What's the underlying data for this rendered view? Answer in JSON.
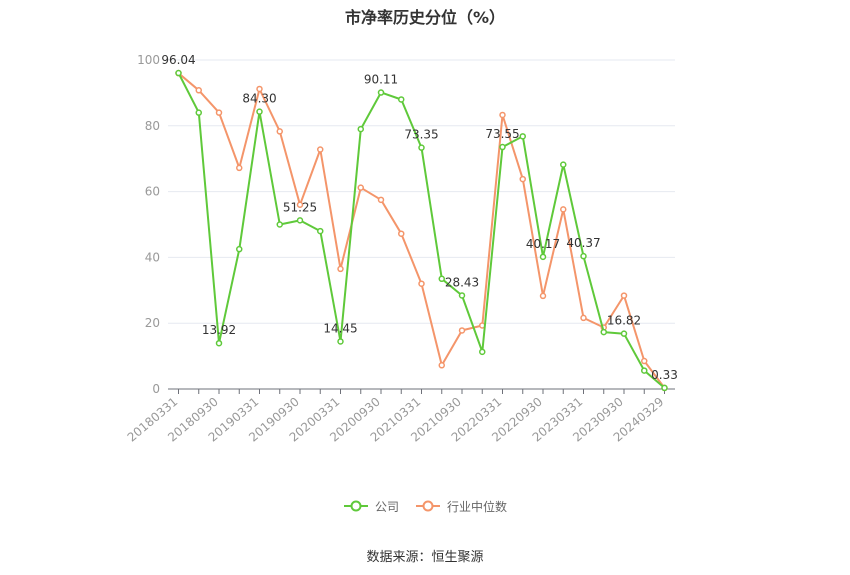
{
  "title": "市净率历史分位（%）",
  "source": "数据来源：恒生聚源",
  "chart_data": {
    "type": "line",
    "title": "市净率历史分位（%）",
    "ylim": [
      0,
      100
    ],
    "yticks": [
      0,
      20,
      40,
      60,
      80,
      100
    ],
    "grid": "horizontal",
    "legend_position": "bottom",
    "x_tick_labels": [
      "20180331",
      "20180930",
      "20190331",
      "20190930",
      "20200331",
      "20200930",
      "20210331",
      "20210930",
      "20220331",
      "20220930",
      "20230331",
      "20230930",
      "20240329"
    ],
    "x": [
      "20180331",
      "20180630",
      "20180930",
      "20181231",
      "20190331",
      "20190630",
      "20190930",
      "20191231",
      "20200331",
      "20200630",
      "20200930",
      "20201231",
      "20210331",
      "20210630",
      "20210930",
      "20211231",
      "20220331",
      "20220630",
      "20220930",
      "20221231",
      "20230331",
      "20230630",
      "20230930",
      "20231231",
      "20240329"
    ],
    "series": [
      {
        "name": "公司",
        "color": "#5fc93a",
        "values": [
          96.04,
          84.0,
          13.92,
          42.5,
          84.3,
          50.0,
          51.25,
          48.0,
          14.45,
          79.0,
          90.11,
          88.0,
          73.35,
          33.5,
          28.43,
          11.3,
          73.55,
          76.8,
          40.17,
          68.2,
          40.37,
          17.3,
          16.82,
          5.6,
          0.33
        ]
      },
      {
        "name": "行业中位数",
        "color": "#f4956a",
        "values": [
          96.0,
          90.8,
          84.0,
          67.2,
          91.2,
          78.3,
          56.0,
          72.8,
          36.5,
          61.2,
          57.5,
          47.2,
          32.0,
          7.2,
          17.8,
          19.3,
          83.3,
          63.8,
          28.3,
          54.6,
          21.6,
          18.7,
          28.4,
          8.5,
          0.33
        ]
      }
    ],
    "data_labels": [
      {
        "index": 0,
        "text": "96.04"
      },
      {
        "index": 2,
        "text": "13.92"
      },
      {
        "index": 4,
        "text": "84.30"
      },
      {
        "index": 6,
        "text": "51.25"
      },
      {
        "index": 8,
        "text": "14.45"
      },
      {
        "index": 10,
        "text": "90.11"
      },
      {
        "index": 12,
        "text": "73.35"
      },
      {
        "index": 14,
        "text": "28.43"
      },
      {
        "index": 16,
        "text": "73.55"
      },
      {
        "index": 18,
        "text": "40.17"
      },
      {
        "index": 20,
        "text": "40.37"
      },
      {
        "index": 22,
        "text": "16.82"
      },
      {
        "index": 24,
        "text": "0.33"
      }
    ]
  }
}
